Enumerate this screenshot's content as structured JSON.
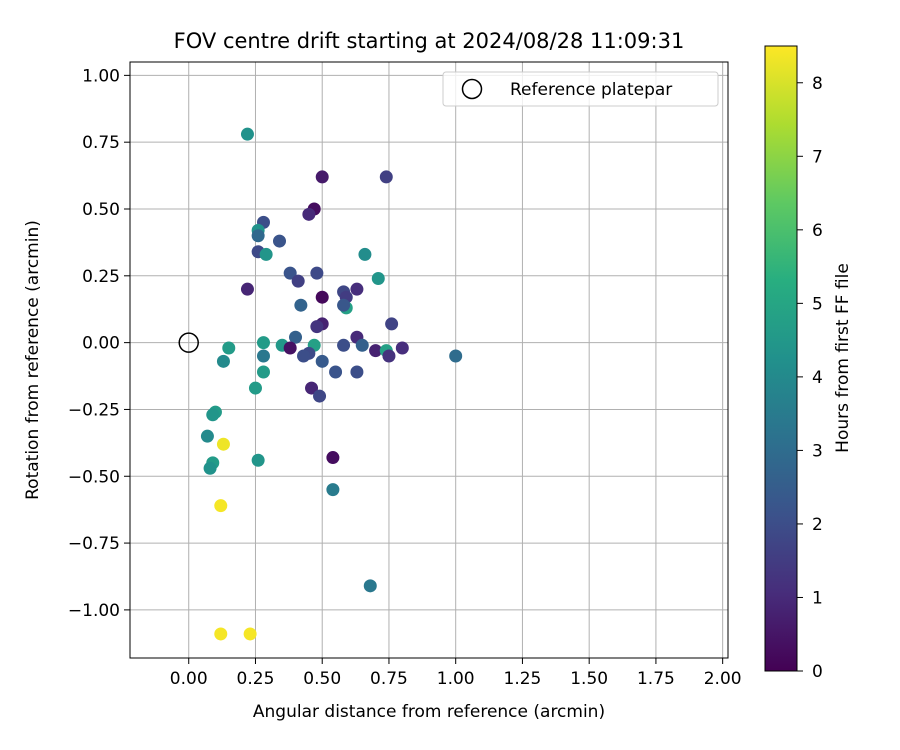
{
  "chart_data": {
    "type": "scatter",
    "title": "FOV centre drift starting at 2024/08/28 11:09:31",
    "xlabel": "Angular distance from reference (arcmin)",
    "ylabel": "Rotation from reference (arcmin)",
    "xlim": [
      -0.22,
      2.02
    ],
    "ylim": [
      -1.18,
      1.05
    ],
    "xticks": [
      0.0,
      0.25,
      0.5,
      0.75,
      1.0,
      1.25,
      1.5,
      1.75,
      2.0
    ],
    "xtick_labels": [
      "0.00",
      "0.25",
      "0.50",
      "0.75",
      "1.00",
      "1.25",
      "1.50",
      "1.75",
      "2.00"
    ],
    "yticks": [
      1.0,
      0.75,
      0.5,
      0.25,
      0.0,
      -0.25,
      -0.5,
      -0.75,
      -1.0
    ],
    "ytick_labels": [
      "1.00",
      "0.75",
      "0.50",
      "0.25",
      "0.00",
      "−0.25",
      "−0.50",
      "−0.75",
      "−1.00"
    ],
    "grid": true,
    "legend": {
      "placement": "top-right",
      "entries": [
        "Reference platepar"
      ]
    },
    "reference_point": {
      "x": 0.0,
      "y": 0.0,
      "label": "Reference platepar"
    },
    "colorbar": {
      "label": "Hours from first FF file",
      "min": 0,
      "max": 8.5,
      "ticks": [
        0,
        1,
        2,
        3,
        4,
        5,
        6,
        7,
        8
      ],
      "tick_labels": [
        "0",
        "1",
        "2",
        "3",
        "4",
        "5",
        "6",
        "7",
        "8"
      ],
      "colormap": "viridis"
    },
    "points": [
      {
        "x": 0.22,
        "y": 0.78,
        "h": 4.3
      },
      {
        "x": 0.5,
        "y": 0.62,
        "h": 0.6
      },
      {
        "x": 0.74,
        "y": 0.62,
        "h": 1.6
      },
      {
        "x": 0.47,
        "y": 0.5,
        "h": 0.3
      },
      {
        "x": 0.45,
        "y": 0.48,
        "h": 1.0
      },
      {
        "x": 0.28,
        "y": 0.45,
        "h": 2.0
      },
      {
        "x": 0.26,
        "y": 0.42,
        "h": 4.3
      },
      {
        "x": 0.26,
        "y": 0.4,
        "h": 2.9
      },
      {
        "x": 0.34,
        "y": 0.38,
        "h": 2.2
      },
      {
        "x": 0.26,
        "y": 0.34,
        "h": 1.9
      },
      {
        "x": 0.29,
        "y": 0.33,
        "h": 4.4
      },
      {
        "x": 0.66,
        "y": 0.33,
        "h": 4.1
      },
      {
        "x": 0.38,
        "y": 0.26,
        "h": 2.2
      },
      {
        "x": 0.48,
        "y": 0.26,
        "h": 1.9
      },
      {
        "x": 0.71,
        "y": 0.24,
        "h": 4.4
      },
      {
        "x": 0.41,
        "y": 0.23,
        "h": 1.6
      },
      {
        "x": 0.22,
        "y": 0.2,
        "h": 0.9
      },
      {
        "x": 0.63,
        "y": 0.2,
        "h": 1.1
      },
      {
        "x": 0.58,
        "y": 0.19,
        "h": 1.8
      },
      {
        "x": 0.59,
        "y": 0.17,
        "h": 1.5
      },
      {
        "x": 0.5,
        "y": 0.17,
        "h": 0.2
      },
      {
        "x": 0.42,
        "y": 0.14,
        "h": 2.7
      },
      {
        "x": 0.59,
        "y": 0.13,
        "h": 4.8
      },
      {
        "x": 0.58,
        "y": 0.14,
        "h": 2.3
      },
      {
        "x": 0.76,
        "y": 0.07,
        "h": 1.7
      },
      {
        "x": 0.5,
        "y": 0.07,
        "h": 0.8
      },
      {
        "x": 0.48,
        "y": 0.06,
        "h": 1.3
      },
      {
        "x": 0.4,
        "y": 0.02,
        "h": 2.6
      },
      {
        "x": 0.63,
        "y": 0.02,
        "h": 1.0
      },
      {
        "x": 0.58,
        "y": -0.01,
        "h": 2.0
      },
      {
        "x": 0.65,
        "y": -0.01,
        "h": 2.6
      },
      {
        "x": 0.28,
        "y": 0.0,
        "h": 4.6
      },
      {
        "x": 0.35,
        "y": -0.01,
        "h": 4.5
      },
      {
        "x": 0.47,
        "y": -0.01,
        "h": 4.8
      },
      {
        "x": 0.38,
        "y": -0.02,
        "h": 0.4
      },
      {
        "x": 0.8,
        "y": -0.02,
        "h": 1.1
      },
      {
        "x": 0.7,
        "y": -0.03,
        "h": 0.8
      },
      {
        "x": 0.74,
        "y": -0.03,
        "h": 4.8
      },
      {
        "x": 0.45,
        "y": -0.04,
        "h": 1.9
      },
      {
        "x": 0.43,
        "y": -0.05,
        "h": 2.0
      },
      {
        "x": 0.75,
        "y": -0.05,
        "h": 1.2
      },
      {
        "x": 1.0,
        "y": -0.05,
        "h": 3.0
      },
      {
        "x": 0.28,
        "y": -0.05,
        "h": 3.4
      },
      {
        "x": 0.15,
        "y": -0.02,
        "h": 4.6
      },
      {
        "x": 0.13,
        "y": -0.07,
        "h": 4.0
      },
      {
        "x": 0.5,
        "y": -0.07,
        "h": 2.4
      },
      {
        "x": 0.55,
        "y": -0.11,
        "h": 2.2
      },
      {
        "x": 0.63,
        "y": -0.11,
        "h": 2.0
      },
      {
        "x": 0.28,
        "y": -0.11,
        "h": 4.6
      },
      {
        "x": 0.46,
        "y": -0.17,
        "h": 0.9
      },
      {
        "x": 0.25,
        "y": -0.17,
        "h": 4.6
      },
      {
        "x": 0.49,
        "y": -0.2,
        "h": 1.8
      },
      {
        "x": 0.1,
        "y": -0.26,
        "h": 4.6
      },
      {
        "x": 0.09,
        "y": -0.27,
        "h": 4.4
      },
      {
        "x": 0.07,
        "y": -0.35,
        "h": 4.0
      },
      {
        "x": 0.13,
        "y": -0.38,
        "h": 8.3
      },
      {
        "x": 0.54,
        "y": -0.43,
        "h": 0.3
      },
      {
        "x": 0.26,
        "y": -0.44,
        "h": 4.4
      },
      {
        "x": 0.09,
        "y": -0.45,
        "h": 4.6
      },
      {
        "x": 0.08,
        "y": -0.47,
        "h": 4.3
      },
      {
        "x": 0.54,
        "y": -0.55,
        "h": 3.5
      },
      {
        "x": 0.12,
        "y": -0.61,
        "h": 8.4
      },
      {
        "x": 0.68,
        "y": -0.91,
        "h": 3.4
      },
      {
        "x": 0.12,
        "y": -1.09,
        "h": 8.4
      },
      {
        "x": 0.23,
        "y": -1.09,
        "h": 8.4
      }
    ]
  }
}
